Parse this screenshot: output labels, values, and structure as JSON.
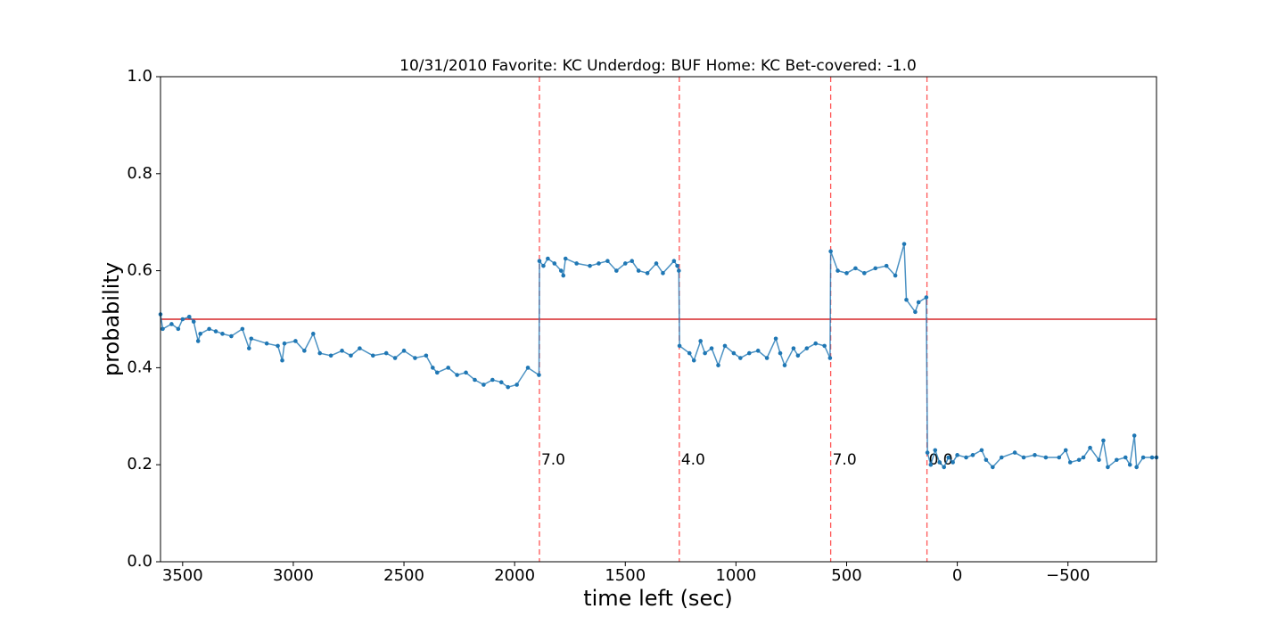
{
  "chart_data": {
    "type": "line",
    "title": "10/31/2010 Favorite: KC Underdog: BUF Home: KC Bet-covered: -1.0",
    "x_label": "time left (sec)",
    "y_label": "probability",
    "xlim": [
      3600,
      -900
    ],
    "ylim": [
      0,
      1
    ],
    "xticks": [
      3500,
      3000,
      2500,
      2000,
      1500,
      1000,
      500,
      0,
      {
        "value": -500,
        "label": "−500"
      }
    ],
    "yticks": [
      {
        "value": 0,
        "label": "0.0"
      },
      0.2,
      0.4,
      0.6,
      0.8,
      {
        "value": 1,
        "label": "1.0"
      }
    ],
    "x": [
      3600,
      3590,
      3550,
      3520,
      3500,
      3470,
      3450,
      3430,
      3420,
      3380,
      3350,
      3320,
      3280,
      3230,
      3200,
      3190,
      3120,
      3070,
      3050,
      3040,
      2990,
      2950,
      2910,
      2880,
      2830,
      2780,
      2740,
      2700,
      2640,
      2580,
      2540,
      2500,
      2450,
      2400,
      2370,
      2350,
      2300,
      2260,
      2220,
      2180,
      2140,
      2100,
      2060,
      2030,
      1990,
      1940,
      1890,
      1888,
      1870,
      1850,
      1820,
      1790,
      1780,
      1770,
      1720,
      1660,
      1620,
      1580,
      1540,
      1500,
      1470,
      1440,
      1400,
      1360,
      1330,
      1280,
      1265,
      1258,
      1255,
      1210,
      1190,
      1160,
      1140,
      1110,
      1080,
      1050,
      1010,
      980,
      940,
      900,
      860,
      820,
      800,
      780,
      740,
      720,
      680,
      640,
      600,
      575,
      572,
      540,
      500,
      460,
      420,
      370,
      320,
      280,
      240,
      230,
      190,
      175,
      140,
      135,
      120,
      100,
      80,
      60,
      40,
      20,
      0,
      -40,
      -70,
      -110,
      -130,
      -160,
      -200,
      -260,
      -300,
      -350,
      -400,
      -460,
      -490,
      -510,
      -550,
      -570,
      -600,
      -640,
      -660,
      -680,
      -720,
      -760,
      -780,
      -800,
      -810,
      -840,
      -880,
      -900
    ],
    "series": [
      {
        "color": "#1f77b4",
        "values": [
          0.51,
          0.48,
          0.49,
          0.48,
          0.5,
          0.505,
          0.495,
          0.455,
          0.47,
          0.48,
          0.475,
          0.47,
          0.465,
          0.48,
          0.44,
          0.46,
          0.45,
          0.445,
          0.415,
          0.45,
          0.455,
          0.435,
          0.47,
          0.43,
          0.425,
          0.435,
          0.425,
          0.44,
          0.425,
          0.43,
          0.42,
          0.435,
          0.42,
          0.425,
          0.4,
          0.39,
          0.4,
          0.385,
          0.39,
          0.375,
          0.365,
          0.375,
          0.37,
          0.36,
          0.365,
          0.4,
          0.385,
          0.62,
          0.61,
          0.625,
          0.615,
          0.6,
          0.59,
          0.625,
          0.615,
          0.61,
          0.615,
          0.62,
          0.6,
          0.615,
          0.62,
          0.6,
          0.595,
          0.615,
          0.595,
          0.62,
          0.61,
          0.6,
          0.445,
          0.43,
          0.415,
          0.455,
          0.43,
          0.44,
          0.405,
          0.445,
          0.43,
          0.42,
          0.43,
          0.435,
          0.42,
          0.46,
          0.43,
          0.405,
          0.44,
          0.425,
          0.44,
          0.45,
          0.445,
          0.42,
          0.64,
          0.6,
          0.595,
          0.605,
          0.595,
          0.605,
          0.61,
          0.59,
          0.655,
          0.54,
          0.515,
          0.535,
          0.545,
          0.225,
          0.2,
          0.23,
          0.205,
          0.195,
          0.215,
          0.205,
          0.22,
          0.215,
          0.22,
          0.23,
          0.21,
          0.195,
          0.215,
          0.225,
          0.215,
          0.22,
          0.215,
          0.215,
          0.23,
          0.205,
          0.21,
          0.215,
          0.235,
          0.21,
          0.25,
          0.195,
          0.21,
          0.215,
          0.2,
          0.26,
          0.195,
          0.215,
          0.215,
          0.215
        ]
      }
    ],
    "hline": 0.5,
    "hline_color": "#d62728",
    "vlines": [
      1888,
      1256,
      572,
      137
    ],
    "vline_labels": [
      "7.0",
      "4.0",
      "7.0",
      "0.0"
    ],
    "vline_color": "#ff5555"
  }
}
